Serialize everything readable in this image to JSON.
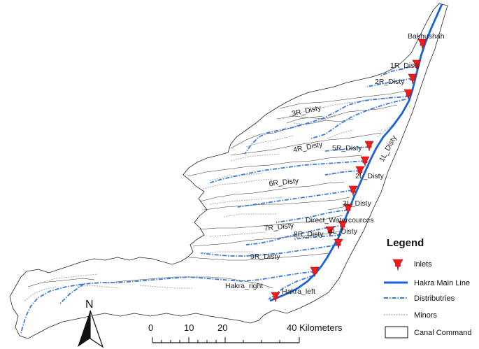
{
  "labels": {
    "bakhushah": "Bakhushah",
    "r1": "1R_Disty",
    "r2": "2R_Disty",
    "r3": "3R_Disty",
    "r4": "4R_Disty",
    "r5": "5R_Disty",
    "l1": "1L_Disty",
    "l2": "2L_Disty",
    "r6": "6R_Disty",
    "l3": "3L_Disty",
    "direct": "Direct_Watercources",
    "r7": "7R_Disty",
    "r8": "8R_Disty",
    "l4": "4L_Disty",
    "r9": "9R_Disty",
    "hakra_right": "Hakra_right",
    "hakra_left": "Hakra_left"
  },
  "legend": {
    "title": "Legend",
    "items": [
      {
        "label": "inlets"
      },
      {
        "label": "Hakra Main Line"
      },
      {
        "label": "Distributries"
      },
      {
        "label": "Minors"
      },
      {
        "label": "Canal Command"
      }
    ]
  },
  "north": {
    "letter": "N"
  },
  "scale": {
    "ticks": [
      "0",
      "10",
      "20",
      "40 Kilometers"
    ]
  },
  "colors": {
    "main_line": "#1a63d6",
    "distributary": "#3a7be0",
    "minor": "#a8a8a8",
    "inlet": "#ee1c1c",
    "boundary": "#222222"
  }
}
